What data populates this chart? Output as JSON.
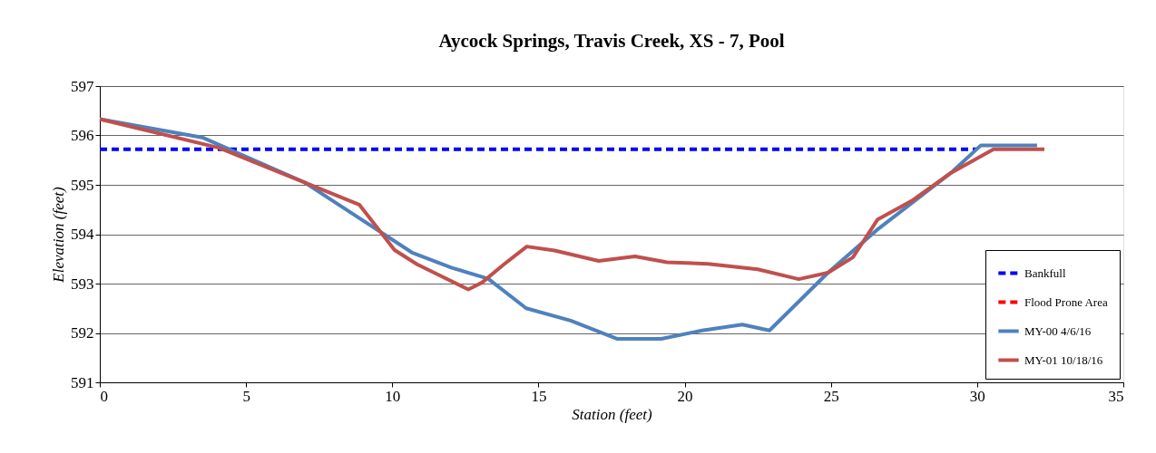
{
  "chart_data": {
    "type": "line",
    "title": "Aycock Springs, Travis Creek, XS - 7, Pool",
    "xlabel": "Station (feet)",
    "ylabel": "Elevation (feet)",
    "xlim": [
      0,
      35
    ],
    "xticks": [
      0,
      5,
      10,
      15,
      20,
      25,
      30,
      35
    ],
    "ylim": [
      591,
      597
    ],
    "yticks": [
      591,
      592,
      593,
      594,
      595,
      596,
      597
    ],
    "grid": "y",
    "legend": "bottom right",
    "marker": "none",
    "series": [
      {
        "name": "Bankfull",
        "color": "#0000ff",
        "line_style": "dashed",
        "x": [
          0,
          30
        ],
        "values": [
          595.72,
          595.72
        ]
      },
      {
        "name": "Flood Prone Area",
        "color": "#ff0000",
        "line_style": "dashed"
      },
      {
        "name": "MY-00 4/6/16",
        "color": "#4f81bd",
        "line_style": "solid",
        "x": [
          0,
          3.5,
          7,
          7.75,
          10.7,
          12.04,
          13.28,
          14.58,
          16.1,
          17.7,
          19.2,
          20.6,
          21.97,
          22.9,
          24.9,
          26.56,
          29.1,
          30.13,
          32.05
        ],
        "values": [
          596.33,
          595.96,
          595.05,
          594.76,
          593.62,
          593.32,
          593.1,
          592.5,
          592.25,
          591.88,
          591.88,
          592.05,
          592.17,
          592.05,
          593.22,
          594.08,
          595.24,
          595.8,
          595.8
        ]
      },
      {
        "name": "MY-01 10/18/16",
        "color": "#c0504d",
        "line_style": "solid",
        "x": [
          0,
          4.07,
          7,
          8.87,
          10.08,
          10.85,
          12.6,
          13.07,
          13.8,
          14.6,
          15.55,
          17.06,
          18.3,
          19.4,
          20.8,
          22.5,
          23.9,
          24.9,
          25.75,
          26.6,
          27.8,
          29.1,
          30.56,
          32.3
        ],
        "values": [
          596.33,
          595.75,
          595.05,
          594.6,
          593.68,
          593.39,
          592.88,
          593.02,
          593.38,
          593.75,
          593.67,
          593.46,
          593.55,
          593.43,
          593.4,
          593.29,
          593.09,
          593.22,
          593.53,
          594.3,
          594.69,
          595.24,
          595.72,
          595.72
        ]
      }
    ]
  }
}
